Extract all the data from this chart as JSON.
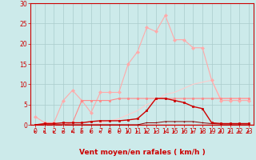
{
  "background_color": "#cceaea",
  "grid_color": "#aacccc",
  "xlabel": "Vent moyen/en rafales ( km/h )",
  "xlabel_color": "#cc0000",
  "xlabel_fontsize": 6.5,
  "tick_color": "#cc0000",
  "tick_fontsize": 5.5,
  "ylim": [
    0,
    30
  ],
  "xlim": [
    -0.5,
    23.5
  ],
  "yticks": [
    0,
    5,
    10,
    15,
    20,
    25,
    30
  ],
  "xticks": [
    0,
    1,
    2,
    3,
    4,
    5,
    6,
    7,
    8,
    9,
    10,
    11,
    12,
    13,
    14,
    15,
    16,
    17,
    18,
    19,
    20,
    21,
    22,
    23
  ],
  "x": [
    0,
    1,
    2,
    3,
    4,
    5,
    6,
    7,
    8,
    9,
    10,
    11,
    12,
    13,
    14,
    15,
    16,
    17,
    18,
    19,
    20,
    21,
    22,
    23
  ],
  "series": [
    {
      "name": "rafales_light",
      "y": [
        2,
        0.5,
        0.5,
        6,
        8.5,
        6,
        3,
        8,
        8,
        8,
        15,
        18,
        24,
        23,
        27,
        21,
        21,
        19,
        19,
        11,
        6,
        6,
        6,
        6
      ],
      "color": "#ffaaaa",
      "linewidth": 0.8,
      "marker": "D",
      "markersize": 2.0,
      "zorder": 3
    },
    {
      "name": "vent_moyen_dark",
      "y": [
        0,
        0.3,
        0.3,
        0.5,
        0.5,
        0.5,
        0.8,
        1,
        1,
        1,
        1.2,
        1.5,
        3.5,
        6.5,
        6.5,
        6,
        5.5,
        4.5,
        4,
        0.5,
        0.3,
        0.3,
        0.3,
        0.3
      ],
      "color": "#cc0000",
      "linewidth": 1.0,
      "marker": "s",
      "markersize": 2.0,
      "zorder": 5
    },
    {
      "name": "flat_medium",
      "y": [
        0,
        0,
        0,
        0,
        0.5,
        6,
        6,
        6,
        6,
        6.5,
        6.5,
        6.5,
        6.5,
        6.5,
        6.5,
        6.5,
        6.5,
        6.5,
        6.5,
        6.5,
        6.5,
        6.5,
        6.5,
        6.5
      ],
      "color": "#ff8888",
      "linewidth": 0.8,
      "marker": "s",
      "markersize": 1.5,
      "zorder": 3
    },
    {
      "name": "linear_rise",
      "y": [
        0,
        0,
        0,
        0,
        0,
        0,
        0,
        0.5,
        1,
        1.5,
        2.5,
        3.5,
        5,
        6,
        7.5,
        8,
        9,
        10,
        10.5,
        11,
        6.5,
        6.5,
        6.5,
        6.5
      ],
      "color": "#ffcccc",
      "linewidth": 0.8,
      "marker": null,
      "markersize": 0,
      "zorder": 2
    },
    {
      "name": "low_dark",
      "y": [
        0,
        0,
        0,
        0,
        0,
        0,
        0,
        0,
        0,
        0,
        0,
        0,
        0.5,
        0.5,
        0.8,
        0.8,
        0.8,
        0.8,
        0.5,
        0.3,
        0.2,
        0.2,
        0.2,
        0.2
      ],
      "color": "#880000",
      "linewidth": 0.7,
      "marker": "+",
      "markersize": 2.0,
      "zorder": 4
    }
  ],
  "arrow_color": "#cc0000",
  "axhline_color": "#cc0000",
  "spine_color": "#cc0000"
}
